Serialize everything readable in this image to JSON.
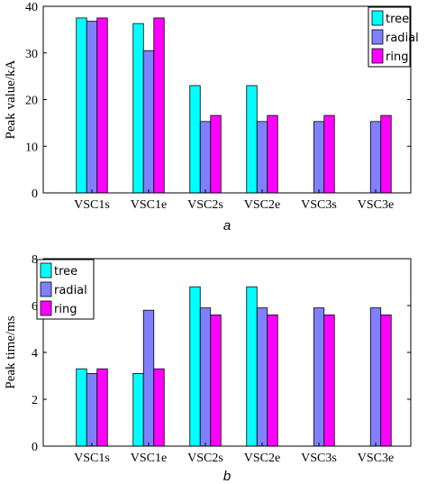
{
  "chart_data": [
    {
      "type": "bar",
      "caption": "a",
      "ylabel": "Peak value/kA",
      "xlabel": "",
      "ylim": [
        0,
        40
      ],
      "yticks": [
        0,
        10,
        20,
        30,
        40
      ],
      "categories": [
        "VSC1s",
        "VSC1e",
        "VSC2s",
        "VSC2e",
        "VSC3s",
        "VSC3e"
      ],
      "series": [
        {
          "name": "tree",
          "color": "#00ffff",
          "values": [
            37.5,
            36.3,
            23.0,
            23.0,
            null,
            null
          ]
        },
        {
          "name": "radial",
          "color": "#8080ff",
          "values": [
            36.8,
            30.5,
            15.3,
            15.3,
            15.3,
            15.3
          ]
        },
        {
          "name": "ring",
          "color": "#ff00ff",
          "values": [
            37.5,
            37.5,
            16.6,
            16.6,
            16.6,
            16.6
          ]
        }
      ],
      "legend": "top-right",
      "grid": false
    },
    {
      "type": "bar",
      "caption": "b",
      "ylabel": "Peak time/ms",
      "xlabel": "",
      "ylim": [
        0,
        8
      ],
      "yticks": [
        0,
        2,
        4,
        6,
        8
      ],
      "categories": [
        "VSC1s",
        "VSC1e",
        "VSC2s",
        "VSC2e",
        "VSC3s",
        "VSC3e"
      ],
      "series": [
        {
          "name": "tree",
          "color": "#00ffff",
          "values": [
            3.3,
            3.1,
            6.8,
            6.8,
            null,
            null
          ]
        },
        {
          "name": "radial",
          "color": "#8080ff",
          "values": [
            3.1,
            5.8,
            5.9,
            5.9,
            5.9,
            5.9
          ]
        },
        {
          "name": "ring",
          "color": "#ff00ff",
          "values": [
            3.3,
            3.3,
            5.6,
            5.6,
            5.6,
            5.6
          ]
        }
      ],
      "legend": "top-left",
      "grid": false
    }
  ]
}
